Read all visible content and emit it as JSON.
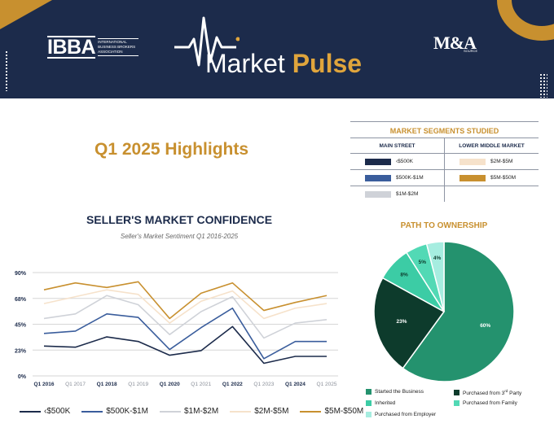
{
  "header": {
    "ibba_acronym": "IBBA",
    "ibba_full": "INTERNATIONAL BUSINESS BROKERS ASSOCIATION",
    "title_part1": "Market",
    "title_part2": "Pulse",
    "partner_logo": "M&A",
    "partner_small": "SOURCE"
  },
  "highlights_title": "Q1 2025 Highlights",
  "segments": {
    "title": "MARKET SEGMENTS STUDIED",
    "main_street": {
      "heading": "MAIN STREET",
      "items": [
        {
          "label": "‹$500K",
          "color": "#1c2b4b"
        },
        {
          "label": "$500K-$1M",
          "color": "#3a5d9c"
        },
        {
          "label": "$1M-$2M",
          "color": "#cfd2d8"
        }
      ]
    },
    "lower_middle": {
      "heading": "LOWER MIDDLE MARKET",
      "items": [
        {
          "label": "$2M-$5M",
          "color": "#f6e2cb"
        },
        {
          "label": "$5M-$50M",
          "color": "#c8902f"
        }
      ]
    }
  },
  "chart_data": [
    {
      "type": "line",
      "title": "SELLER'S MARKET CONFIDENCE",
      "subtitle": "Seller's Market Sentiment Q1 2016-2025",
      "categories": [
        "Q1 2016",
        "Q1 2017",
        "Q1 2018",
        "Q1 2019",
        "Q1 2020",
        "Q1 2021",
        "Q1 2022",
        "Q1 2023",
        "Q1 2024",
        "Q1 2025"
      ],
      "y_ticks": [
        "0%",
        "23%",
        "45%",
        "68%",
        "90%"
      ],
      "ylim": [
        0,
        90
      ],
      "grid": true,
      "legend_position": "bottom",
      "series": [
        {
          "name": "‹$500K",
          "color": "#1c2b4b",
          "values": [
            26,
            25,
            34,
            30,
            18,
            22,
            43,
            11,
            17,
            17
          ]
        },
        {
          "name": "$500K-$1M",
          "color": "#3a5d9c",
          "values": [
            37,
            39,
            54,
            51,
            23,
            42,
            59,
            15,
            30,
            30
          ]
        },
        {
          "name": "$1M-$2M",
          "color": "#cfd2d8",
          "values": [
            50,
            54,
            70,
            62,
            36,
            56,
            69,
            33,
            46,
            49
          ]
        },
        {
          "name": "$2M-$5M",
          "color": "#f6e2cb",
          "values": [
            63,
            69,
            75,
            71,
            46,
            65,
            74,
            50,
            59,
            63
          ]
        },
        {
          "name": "$5M-$50M",
          "color": "#c8902f",
          "values": [
            75,
            81,
            77,
            82,
            50,
            72,
            81,
            57,
            64,
            70
          ]
        }
      ]
    },
    {
      "type": "pie",
      "title": "PATH TO OWNERSHIP",
      "labels": [
        "Started the Business",
        "Purchased from 3rd Party",
        "Inherited",
        "Purchased from Family",
        "Purchased from Employer"
      ],
      "values": [
        60,
        23,
        8,
        5,
        4
      ],
      "value_labels": [
        "60%",
        "23%",
        "8%",
        "5%",
        "4%"
      ],
      "colors": [
        "#24926e",
        "#0d3b2c",
        "#3ccca5",
        "#52d9b5",
        "#a6ede0"
      ]
    }
  ]
}
